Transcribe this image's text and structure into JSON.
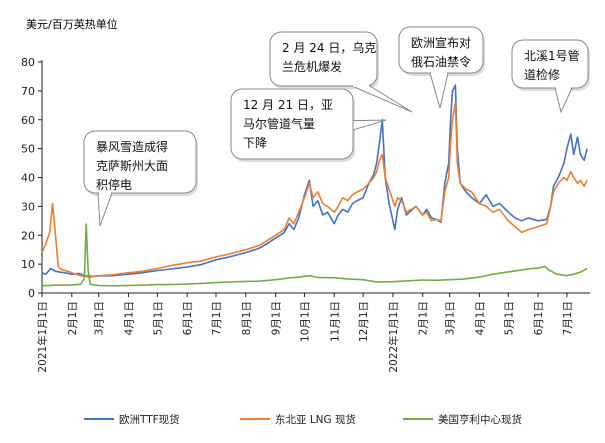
{
  "chart_data": {
    "type": "line",
    "ylabel": "美元/百万英热单位",
    "ylim": [
      0,
      80
    ],
    "yticks": [
      0,
      10,
      20,
      30,
      40,
      50,
      60,
      70,
      80
    ],
    "x_range": [
      "2021-01-01",
      "2022-07-25"
    ],
    "x_ticks": [
      {
        "date": "2021-01-01",
        "label": "2021年1月1日"
      },
      {
        "date": "2021-02-01",
        "label": "2月1日"
      },
      {
        "date": "2021-03-01",
        "label": "3月1日"
      },
      {
        "date": "2021-04-01",
        "label": "4月1日"
      },
      {
        "date": "2021-05-01",
        "label": "5月1日"
      },
      {
        "date": "2021-06-01",
        "label": "6月1日"
      },
      {
        "date": "2021-07-01",
        "label": "7月1日"
      },
      {
        "date": "2021-08-01",
        "label": "8月1日"
      },
      {
        "date": "2021-09-01",
        "label": "9月1日"
      },
      {
        "date": "2021-10-01",
        "label": "10月1日"
      },
      {
        "date": "2021-11-01",
        "label": "11月1日"
      },
      {
        "date": "2021-12-01",
        "label": "12月1日"
      },
      {
        "date": "2022-01-01",
        "label": "2022年1月1日"
      },
      {
        "date": "2022-02-01",
        "label": "2月1日"
      },
      {
        "date": "2022-03-01",
        "label": "3月1日"
      },
      {
        "date": "2022-04-01",
        "label": "4月1日"
      },
      {
        "date": "2022-05-01",
        "label": "5月1日"
      },
      {
        "date": "2022-06-01",
        "label": "6月1日"
      },
      {
        "date": "2022-07-01",
        "label": "7月1日"
      }
    ],
    "grid": false,
    "legend_position": "bottom",
    "series": [
      {
        "name": "欧洲TTF现货",
        "color": "#4472c4",
        "points": [
          [
            "2021-01-01",
            7.0
          ],
          [
            "2021-01-05",
            6.5
          ],
          [
            "2021-01-10",
            8.5
          ],
          [
            "2021-01-15",
            7.5
          ],
          [
            "2021-01-20",
            7.2
          ],
          [
            "2021-01-25",
            7.0
          ],
          [
            "2021-02-01",
            6.5
          ],
          [
            "2021-02-08",
            6.8
          ],
          [
            "2021-02-15",
            6.0
          ],
          [
            "2021-02-22",
            5.8
          ],
          [
            "2021-03-01",
            5.9
          ],
          [
            "2021-03-15",
            6.0
          ],
          [
            "2021-04-01",
            6.5
          ],
          [
            "2021-04-15",
            7.0
          ],
          [
            "2021-05-01",
            7.8
          ],
          [
            "2021-05-15",
            8.3
          ],
          [
            "2021-06-01",
            9.0
          ],
          [
            "2021-06-15",
            9.8
          ],
          [
            "2021-07-01",
            11.5
          ],
          [
            "2021-07-15",
            12.5
          ],
          [
            "2021-08-01",
            14.0
          ],
          [
            "2021-08-15",
            15.5
          ],
          [
            "2021-08-25",
            17.5
          ],
          [
            "2021-09-01",
            19.0
          ],
          [
            "2021-09-10",
            21.0
          ],
          [
            "2021-09-15",
            24.0
          ],
          [
            "2021-09-20",
            22.0
          ],
          [
            "2021-09-25",
            26.0
          ],
          [
            "2021-10-01",
            34.0
          ],
          [
            "2021-10-06",
            39.0
          ],
          [
            "2021-10-10",
            30.0
          ],
          [
            "2021-10-15",
            32.0
          ],
          [
            "2021-10-20",
            27.0
          ],
          [
            "2021-10-25",
            28.0
          ],
          [
            "2021-11-01",
            24.0
          ],
          [
            "2021-11-05",
            27.0
          ],
          [
            "2021-11-10",
            29.0
          ],
          [
            "2021-11-15",
            28.0
          ],
          [
            "2021-11-20",
            31.0
          ],
          [
            "2021-11-25",
            32.0
          ],
          [
            "2021-12-01",
            33.0
          ],
          [
            "2021-12-07",
            38.0
          ],
          [
            "2021-12-12",
            41.0
          ],
          [
            "2021-12-15",
            45.0
          ],
          [
            "2021-12-18",
            52.0
          ],
          [
            "2021-12-21",
            60.0
          ],
          [
            "2021-12-24",
            40.0
          ],
          [
            "2021-12-28",
            31.0
          ],
          [
            "2022-01-03",
            22.0
          ],
          [
            "2022-01-06",
            29.0
          ],
          [
            "2022-01-10",
            33.0
          ],
          [
            "2022-01-15",
            27.0
          ],
          [
            "2022-01-20",
            28.5
          ],
          [
            "2022-01-25",
            30.0
          ],
          [
            "2022-02-01",
            27.0
          ],
          [
            "2022-02-05",
            29.0
          ],
          [
            "2022-02-10",
            26.0
          ],
          [
            "2022-02-15",
            25.5
          ],
          [
            "2022-02-20",
            24.5
          ],
          [
            "2022-02-24",
            38.0
          ],
          [
            "2022-02-28",
            45.0
          ],
          [
            "2022-03-02",
            60.0
          ],
          [
            "2022-03-04",
            70.0
          ],
          [
            "2022-03-07",
            72.0
          ],
          [
            "2022-03-09",
            50.0
          ],
          [
            "2022-03-12",
            38.0
          ],
          [
            "2022-03-18",
            35.0
          ],
          [
            "2022-03-24",
            33.0
          ],
          [
            "2022-04-01",
            31.0
          ],
          [
            "2022-04-08",
            34.0
          ],
          [
            "2022-04-15",
            30.0
          ],
          [
            "2022-04-22",
            31.0
          ],
          [
            "2022-05-01",
            28.0
          ],
          [
            "2022-05-08",
            26.0
          ],
          [
            "2022-05-15",
            25.0
          ],
          [
            "2022-05-22",
            26.0
          ],
          [
            "2022-06-01",
            25.0
          ],
          [
            "2022-06-10",
            25.5
          ],
          [
            "2022-06-14",
            30.0
          ],
          [
            "2022-06-17",
            37.0
          ],
          [
            "2022-06-22",
            40.0
          ],
          [
            "2022-06-28",
            45.0
          ],
          [
            "2022-07-01",
            50.0
          ],
          [
            "2022-07-05",
            55.0
          ],
          [
            "2022-07-08",
            48.0
          ],
          [
            "2022-07-12",
            54.0
          ],
          [
            "2022-07-15",
            48.0
          ],
          [
            "2022-07-19",
            46.0
          ],
          [
            "2022-07-22",
            50.0
          ]
        ]
      },
      {
        "name": "东北亚 LNG 现货",
        "color": "#ed7d31",
        "points": [
          [
            "2021-01-01",
            14.0
          ],
          [
            "2021-01-05",
            17.0
          ],
          [
            "2021-01-09",
            21.0
          ],
          [
            "2021-01-12",
            31.0
          ],
          [
            "2021-01-15",
            20.0
          ],
          [
            "2021-01-18",
            9.0
          ],
          [
            "2021-01-22",
            8.0
          ],
          [
            "2021-01-28",
            7.5
          ],
          [
            "2021-02-01",
            7.0
          ],
          [
            "2021-02-10",
            6.0
          ],
          [
            "2021-02-20",
            5.5
          ],
          [
            "2021-03-01",
            6.0
          ],
          [
            "2021-03-15",
            6.3
          ],
          [
            "2021-04-01",
            7.0
          ],
          [
            "2021-04-15",
            7.5
          ],
          [
            "2021-05-01",
            8.5
          ],
          [
            "2021-05-15",
            9.5
          ],
          [
            "2021-06-01",
            10.5
          ],
          [
            "2021-06-15",
            11.0
          ],
          [
            "2021-07-01",
            12.5
          ],
          [
            "2021-07-15",
            13.5
          ],
          [
            "2021-08-01",
            15.0
          ],
          [
            "2021-08-15",
            16.5
          ],
          [
            "2021-08-25",
            18.5
          ],
          [
            "2021-09-01",
            20.0
          ],
          [
            "2021-09-10",
            22.0
          ],
          [
            "2021-09-15",
            26.0
          ],
          [
            "2021-09-20",
            24.0
          ],
          [
            "2021-09-25",
            28.0
          ],
          [
            "2021-10-01",
            33.0
          ],
          [
            "2021-10-06",
            38.0
          ],
          [
            "2021-10-10",
            33.0
          ],
          [
            "2021-10-15",
            35.0
          ],
          [
            "2021-10-20",
            31.0
          ],
          [
            "2021-10-25",
            30.0
          ],
          [
            "2021-11-01",
            28.0
          ],
          [
            "2021-11-05",
            30.0
          ],
          [
            "2021-11-10",
            33.0
          ],
          [
            "2021-11-15",
            32.0
          ],
          [
            "2021-11-20",
            34.0
          ],
          [
            "2021-11-25",
            35.0
          ],
          [
            "2021-12-01",
            36.0
          ],
          [
            "2021-12-07",
            38.0
          ],
          [
            "2021-12-12",
            40.0
          ],
          [
            "2021-12-15",
            42.0
          ],
          [
            "2021-12-18",
            46.0
          ],
          [
            "2021-12-21",
            48.0
          ],
          [
            "2021-12-24",
            40.0
          ],
          [
            "2021-12-28",
            36.0
          ],
          [
            "2022-01-03",
            30.0
          ],
          [
            "2022-01-06",
            33.0
          ],
          [
            "2022-01-10",
            32.0
          ],
          [
            "2022-01-15",
            28.0
          ],
          [
            "2022-01-20",
            29.0
          ],
          [
            "2022-01-25",
            30.0
          ],
          [
            "2022-02-01",
            27.0
          ],
          [
            "2022-02-05",
            28.0
          ],
          [
            "2022-02-10",
            25.0
          ],
          [
            "2022-02-15",
            25.5
          ],
          [
            "2022-02-20",
            25.0
          ],
          [
            "2022-02-24",
            35.0
          ],
          [
            "2022-02-28",
            40.0
          ],
          [
            "2022-03-02",
            52.0
          ],
          [
            "2022-03-04",
            60.0
          ],
          [
            "2022-03-07",
            66.0
          ],
          [
            "2022-03-09",
            45.0
          ],
          [
            "2022-03-12",
            38.0
          ],
          [
            "2022-03-18",
            36.0
          ],
          [
            "2022-03-24",
            35.0
          ],
          [
            "2022-04-01",
            31.0
          ],
          [
            "2022-04-08",
            30.0
          ],
          [
            "2022-04-15",
            28.0
          ],
          [
            "2022-04-22",
            29.0
          ],
          [
            "2022-05-01",
            25.0
          ],
          [
            "2022-05-08",
            23.0
          ],
          [
            "2022-05-15",
            21.0
          ],
          [
            "2022-05-22",
            22.0
          ],
          [
            "2022-06-01",
            23.0
          ],
          [
            "2022-06-10",
            24.0
          ],
          [
            "2022-06-14",
            30.0
          ],
          [
            "2022-06-17",
            35.0
          ],
          [
            "2022-06-22",
            38.0
          ],
          [
            "2022-06-28",
            40.0
          ],
          [
            "2022-07-01",
            39.0
          ],
          [
            "2022-07-05",
            42.0
          ],
          [
            "2022-07-08",
            40.0
          ],
          [
            "2022-07-12",
            38.0
          ],
          [
            "2022-07-15",
            39.0
          ],
          [
            "2022-07-19",
            37.0
          ],
          [
            "2022-07-22",
            39.0
          ]
        ]
      },
      {
        "name": "美国亨利中心现货",
        "color": "#70ad47",
        "points": [
          [
            "2021-01-01",
            2.5
          ],
          [
            "2021-01-15",
            2.7
          ],
          [
            "2021-02-01",
            2.8
          ],
          [
            "2021-02-10",
            3.0
          ],
          [
            "2021-02-14",
            5.0
          ],
          [
            "2021-02-16",
            23.9
          ],
          [
            "2021-02-18",
            8.0
          ],
          [
            "2021-02-20",
            3.0
          ],
          [
            "2021-03-01",
            2.6
          ],
          [
            "2021-03-15",
            2.5
          ],
          [
            "2021-04-01",
            2.6
          ],
          [
            "2021-04-15",
            2.7
          ],
          [
            "2021-05-01",
            2.9
          ],
          [
            "2021-05-15",
            2.9
          ],
          [
            "2021-06-01",
            3.1
          ],
          [
            "2021-06-15",
            3.3
          ],
          [
            "2021-07-01",
            3.6
          ],
          [
            "2021-07-15",
            3.8
          ],
          [
            "2021-08-01",
            4.0
          ],
          [
            "2021-08-15",
            4.1
          ],
          [
            "2021-09-01",
            4.6
          ],
          [
            "2021-09-15",
            5.2
          ],
          [
            "2021-09-25",
            5.5
          ],
          [
            "2021-10-01",
            5.8
          ],
          [
            "2021-10-06",
            6.0
          ],
          [
            "2021-10-15",
            5.4
          ],
          [
            "2021-11-01",
            5.3
          ],
          [
            "2021-11-15",
            4.9
          ],
          [
            "2021-12-01",
            4.6
          ],
          [
            "2021-12-15",
            3.8
          ],
          [
            "2022-01-01",
            3.9
          ],
          [
            "2022-01-15",
            4.2
          ],
          [
            "2022-02-01",
            4.5
          ],
          [
            "2022-02-15",
            4.4
          ],
          [
            "2022-03-01",
            4.6
          ],
          [
            "2022-03-15",
            4.8
          ],
          [
            "2022-04-01",
            5.5
          ],
          [
            "2022-04-15",
            6.5
          ],
          [
            "2022-05-01",
            7.3
          ],
          [
            "2022-05-15",
            8.0
          ],
          [
            "2022-05-25",
            8.5
          ],
          [
            "2022-06-01",
            8.6
          ],
          [
            "2022-06-08",
            9.2
          ],
          [
            "2022-06-12",
            8.0
          ],
          [
            "2022-06-15",
            7.5
          ],
          [
            "2022-06-20",
            6.5
          ],
          [
            "2022-06-25",
            6.3
          ],
          [
            "2022-07-01",
            6.0
          ],
          [
            "2022-07-08",
            6.5
          ],
          [
            "2022-07-15",
            7.2
          ],
          [
            "2022-07-22",
            8.5
          ]
        ]
      }
    ],
    "annotations": [
      {
        "lines": [
          "暴风雪造成得",
          "克萨斯州大面",
          "积停电"
        ]
      },
      {
        "lines": [
          "12 月 21 日，亚",
          "马尔管道气量",
          "下降"
        ]
      },
      {
        "lines": [
          "2 月 24 日，乌克",
          "兰危机爆发"
        ]
      },
      {
        "lines": [
          "欧洲宣布对",
          "俄石油禁令"
        ]
      },
      {
        "lines": [
          "北溪1号管",
          "道检修"
        ]
      }
    ]
  }
}
